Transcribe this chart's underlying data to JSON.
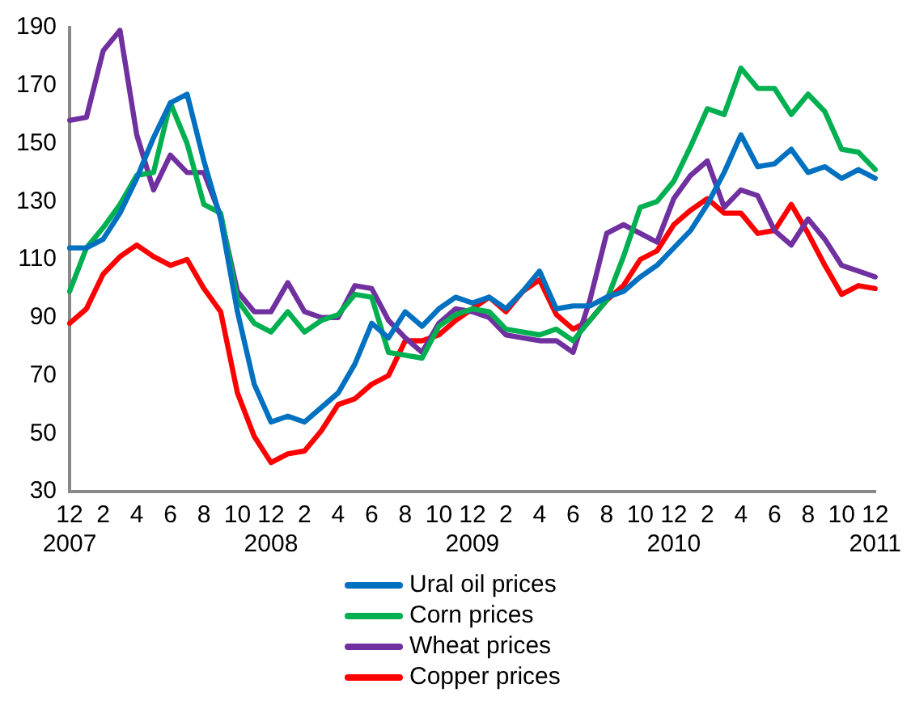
{
  "chart_data": {
    "type": "line",
    "categories": [
      "12\n2007",
      null,
      "2",
      null,
      "4",
      null,
      "6",
      null,
      "8",
      null,
      "10",
      null,
      "12\n2008",
      null,
      "2",
      null,
      "4",
      null,
      "6",
      null,
      "8",
      null,
      "10",
      null,
      "12\n2009",
      null,
      "2",
      null,
      "4",
      null,
      "6",
      null,
      "8",
      null,
      "10",
      null,
      "12\n2010",
      null,
      "2",
      null,
      "4",
      null,
      "6",
      null,
      "8",
      null,
      "10",
      null,
      "12\n2011"
    ],
    "series": [
      {
        "name": "Ural oil prices",
        "color": "#0070c0",
        "values": [
          114,
          114,
          117,
          126,
          138,
          152,
          164,
          167,
          144,
          124,
          92,
          67,
          54,
          56,
          54,
          59,
          64,
          74,
          88,
          83,
          92,
          87,
          93,
          97,
          95,
          97,
          93,
          99,
          106,
          93,
          94,
          94,
          97,
          99,
          104,
          108,
          114,
          120,
          129,
          140,
          153,
          142,
          143,
          148,
          140,
          142,
          138,
          141,
          138
        ]
      },
      {
        "name": "Corn prices",
        "color": "#00b050",
        "values": [
          99,
          114,
          121,
          129,
          139,
          140,
          164,
          150,
          129,
          126,
          96,
          88,
          85,
          92,
          85,
          89,
          91,
          98,
          97,
          78,
          77,
          76,
          87,
          91,
          93,
          92,
          86,
          85,
          84,
          86,
          82,
          89,
          96,
          111,
          128,
          130,
          137,
          149,
          162,
          160,
          176,
          169,
          169,
          160,
          167,
          161,
          148,
          147,
          141
        ]
      },
      {
        "name": "Wheat prices",
        "color": "#7030a0",
        "values": [
          158,
          159,
          182,
          189,
          153,
          134,
          146,
          140,
          140,
          125,
          99,
          92,
          92,
          102,
          92,
          90,
          90,
          101,
          100,
          89,
          83,
          78,
          88,
          93,
          92,
          90,
          84,
          83,
          82,
          82,
          78,
          96,
          119,
          122,
          119,
          116,
          131,
          139,
          144,
          128,
          134,
          132,
          120,
          115,
          124,
          117,
          108,
          106,
          104
        ]
      },
      {
        "name": "Copper prices",
        "color": "#ff0000",
        "values": [
          88,
          93,
          105,
          111,
          115,
          111,
          108,
          110,
          100,
          92,
          64,
          49,
          40,
          43,
          44,
          51,
          60,
          62,
          67,
          70,
          82,
          82,
          84,
          89,
          93,
          97,
          92,
          99,
          103,
          91,
          86,
          89,
          96,
          101,
          110,
          113,
          122,
          127,
          131,
          126,
          126,
          119,
          120,
          129,
          119,
          108,
          98,
          101,
          100
        ]
      }
    ],
    "ylim": [
      30,
      190
    ],
    "yticks": [
      30,
      50,
      70,
      90,
      110,
      130,
      150,
      170,
      190
    ],
    "grid": false,
    "legend": "bottom",
    "marker": "none",
    "line_style": "solid"
  }
}
